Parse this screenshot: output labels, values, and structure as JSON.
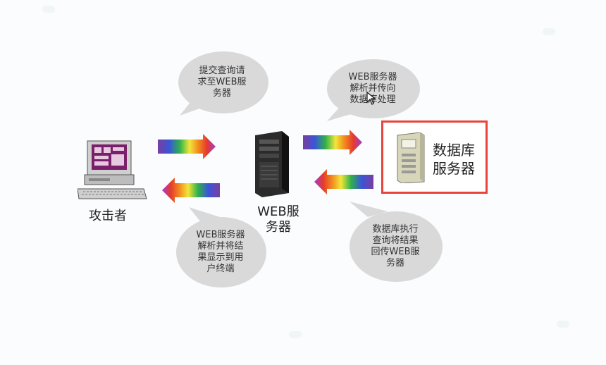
{
  "bubbles": {
    "submit": [
      "提交查询请",
      "求至WEB服",
      "务器"
    ],
    "parse_forward": [
      "WEB服务器",
      "解析并传向",
      "数据库处理"
    ],
    "parse_display": [
      "WEB服务器",
      "解析并将结",
      "果显示到用",
      "户终端"
    ],
    "db_execute": [
      "数据库执行",
      "查询将结果",
      "回传WEB服",
      "务器"
    ]
  },
  "captions": {
    "attacker": "攻击者",
    "web_server": [
      "WEB服",
      "务器"
    ],
    "db_server": [
      "数据库",
      "服务器"
    ]
  },
  "colors": {
    "highlight_box": "#e8443a",
    "bubble_fill": "#d9d9d9",
    "rainbow": [
      "#7a3ea0",
      "#3a55d8",
      "#2fb24a",
      "#f2e63a",
      "#f28a1e",
      "#e53b2c",
      "#a33bd4"
    ]
  },
  "icons": [
    "computer-icon",
    "web-server-tower-icon",
    "database-server-icon",
    "rainbow-arrow-icon"
  ]
}
